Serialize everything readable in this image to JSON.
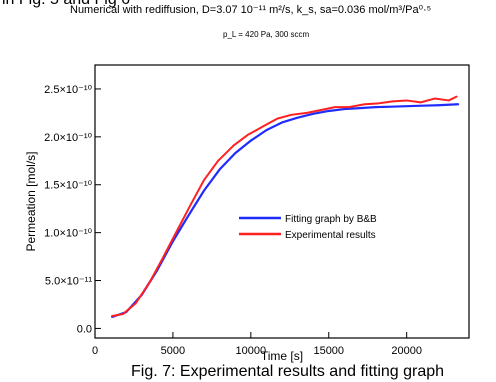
{
  "header": {
    "top_fragment": "in Fig. 5 and Fig 6",
    "title": "Numerical with rediffusion, D=3.07 10⁻¹¹ m²/s, k_s, sa=0.036 mol/m³/Pa⁰·⁵",
    "subtitle": "p_L = 420 Pa, 300 sccm"
  },
  "caption": "Fig. 7: Experimental results and fitting graph",
  "chart_data": {
    "type": "line",
    "title": "Numerical with rediffusion, D=3.07 10⁻¹¹ m²/s, k_s, sa=0.036 mol/m³/Pa⁰·⁵",
    "subtitle": "p_L = 420 Pa, 300 sccm",
    "xlabel": "Time [s]",
    "ylabel": "Permeation [mol/s]",
    "xlim": [
      0,
      24000
    ],
    "ylim": [
      -1e-11,
      2.75e-10
    ],
    "grid": false,
    "legend": "center-right",
    "x_ticks": [
      0,
      5000,
      10000,
      15000,
      20000
    ],
    "x_tick_labels": [
      "0",
      "5000",
      "10000",
      "15000",
      "20000"
    ],
    "y_ticks": [
      0,
      5e-11,
      1e-10,
      1.5e-10,
      2e-10,
      2.5e-10
    ],
    "y_tick_labels": [
      "0.0",
      "5.0×10⁻¹¹",
      "1.0×10⁻¹⁰",
      "1.5×10⁻¹⁰",
      "2.0×10⁻¹⁰",
      "2.5×10⁻¹⁰"
    ],
    "series": [
      {
        "name": "Fitting graph by B&B",
        "color": "#1f2cff",
        "x": [
          1100,
          2000,
          3000,
          4000,
          5000,
          6000,
          7000,
          8000,
          9000,
          10000,
          11000,
          12000,
          13000,
          14000,
          15000,
          16000,
          17000,
          18000,
          19000,
          20000,
          21000,
          22000,
          23300
        ],
        "y": [
          1.2e-11,
          1.7e-11,
          3.5e-11,
          6.1e-11,
          9.1e-11,
          1.18e-10,
          1.44e-10,
          1.66e-10,
          1.83e-10,
          1.96e-10,
          2.07e-10,
          2.15e-10,
          2.2e-10,
          2.24e-10,
          2.27e-10,
          2.29e-10,
          2.3e-10,
          2.31e-10,
          2.315e-10,
          2.32e-10,
          2.325e-10,
          2.33e-10,
          2.34e-10
        ]
      },
      {
        "name": "Experimental results",
        "color": "#ff2020",
        "x": [
          1100,
          1800,
          2600,
          3500,
          4300,
          5200,
          6100,
          7000,
          7900,
          8900,
          9800,
          10800,
          11700,
          12600,
          13600,
          14500,
          15400,
          16300,
          17300,
          18200,
          19100,
          20000,
          20900,
          21800,
          22700,
          23200
        ],
        "y": [
          1.3e-11,
          1.5e-11,
          2.6e-11,
          4.8e-11,
          7.2e-11,
          1e-10,
          1.28e-10,
          1.55e-10,
          1.75e-10,
          1.91e-10,
          2.02e-10,
          2.11e-10,
          2.19e-10,
          2.23e-10,
          2.25e-10,
          2.28e-10,
          2.31e-10,
          2.31e-10,
          2.34e-10,
          2.35e-10,
          2.37e-10,
          2.38e-10,
          2.36e-10,
          2.4e-10,
          2.38e-10,
          2.42e-10
        ]
      }
    ]
  }
}
